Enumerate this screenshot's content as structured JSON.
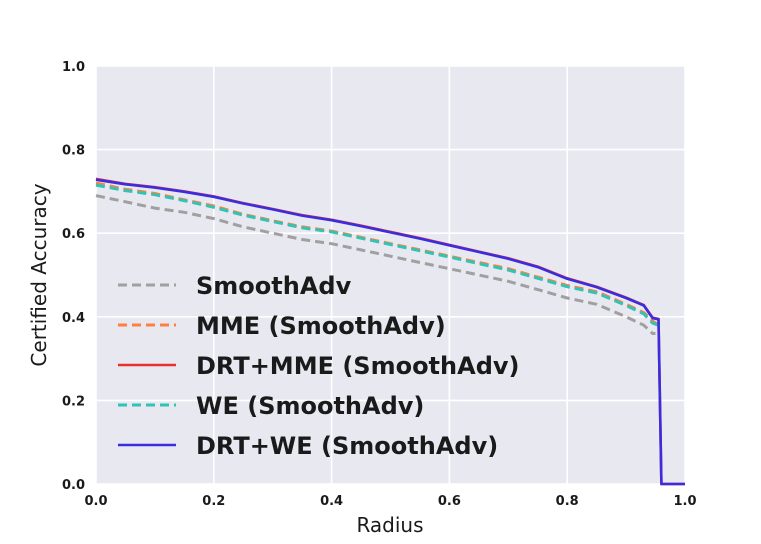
{
  "chart_data": {
    "type": "line",
    "xlabel": "Radius",
    "ylabel": "Certified Accuracy",
    "xlim": [
      0.0,
      1.0
    ],
    "ylim": [
      0.0,
      1.0
    ],
    "xticks": [
      "0.0",
      "0.2",
      "0.4",
      "0.6",
      "0.8",
      "1.0"
    ],
    "yticks": [
      "0.0",
      "0.2",
      "0.4",
      "0.6",
      "0.8",
      "1.0"
    ],
    "grid": true,
    "legend_position": "lower-left",
    "series": [
      {
        "name": "SmoothAdv",
        "color": "#a0a0a0",
        "dash": "dashed",
        "points": [
          [
            0.0,
            0.69
          ],
          [
            0.05,
            0.675
          ],
          [
            0.1,
            0.66
          ],
          [
            0.15,
            0.65
          ],
          [
            0.2,
            0.635
          ],
          [
            0.25,
            0.615
          ],
          [
            0.3,
            0.6
          ],
          [
            0.35,
            0.585
          ],
          [
            0.4,
            0.575
          ],
          [
            0.45,
            0.56
          ],
          [
            0.5,
            0.545
          ],
          [
            0.55,
            0.53
          ],
          [
            0.6,
            0.515
          ],
          [
            0.65,
            0.5
          ],
          [
            0.7,
            0.485
          ],
          [
            0.75,
            0.465
          ],
          [
            0.8,
            0.445
          ],
          [
            0.85,
            0.43
          ],
          [
            0.9,
            0.4
          ],
          [
            0.93,
            0.38
          ],
          [
            0.945,
            0.36
          ],
          [
            0.95,
            0.36
          ]
        ]
      },
      {
        "name": "MME (SmoothAdv)",
        "color": "#ff7f40",
        "dash": "dashed",
        "points": [
          [
            0.0,
            0.72
          ],
          [
            0.05,
            0.705
          ],
          [
            0.1,
            0.695
          ],
          [
            0.15,
            0.68
          ],
          [
            0.2,
            0.665
          ],
          [
            0.25,
            0.645
          ],
          [
            0.3,
            0.63
          ],
          [
            0.35,
            0.615
          ],
          [
            0.4,
            0.605
          ],
          [
            0.45,
            0.59
          ],
          [
            0.5,
            0.575
          ],
          [
            0.55,
            0.56
          ],
          [
            0.6,
            0.545
          ],
          [
            0.65,
            0.53
          ],
          [
            0.7,
            0.515
          ],
          [
            0.75,
            0.495
          ],
          [
            0.8,
            0.475
          ],
          [
            0.85,
            0.46
          ],
          [
            0.9,
            0.43
          ],
          [
            0.93,
            0.41
          ],
          [
            0.945,
            0.39
          ],
          [
            0.955,
            0.38
          ]
        ]
      },
      {
        "name": "DRT+MME (SmoothAdv)",
        "color": "#e8312e",
        "dash": "solid",
        "points": [
          [
            0.0,
            0.73
          ],
          [
            0.05,
            0.718
          ],
          [
            0.1,
            0.71
          ],
          [
            0.15,
            0.7
          ],
          [
            0.2,
            0.688
          ],
          [
            0.25,
            0.672
          ],
          [
            0.3,
            0.658
          ],
          [
            0.35,
            0.643
          ],
          [
            0.4,
            0.632
          ],
          [
            0.45,
            0.618
          ],
          [
            0.5,
            0.603
          ],
          [
            0.55,
            0.588
          ],
          [
            0.6,
            0.572
          ],
          [
            0.65,
            0.556
          ],
          [
            0.7,
            0.54
          ],
          [
            0.75,
            0.52
          ],
          [
            0.8,
            0.492
          ],
          [
            0.85,
            0.472
          ],
          [
            0.9,
            0.446
          ],
          [
            0.93,
            0.428
          ],
          [
            0.945,
            0.398
          ],
          [
            0.955,
            0.395
          ],
          [
            0.96,
            0.0
          ],
          [
            1.0,
            0.0
          ]
        ]
      },
      {
        "name": "WE (SmoothAdv)",
        "color": "#2ec4b6",
        "dash": "dashed",
        "points": [
          [
            0.0,
            0.715
          ],
          [
            0.05,
            0.702
          ],
          [
            0.1,
            0.692
          ],
          [
            0.15,
            0.678
          ],
          [
            0.2,
            0.662
          ],
          [
            0.25,
            0.643
          ],
          [
            0.3,
            0.628
          ],
          [
            0.35,
            0.613
          ],
          [
            0.4,
            0.603
          ],
          [
            0.45,
            0.588
          ],
          [
            0.5,
            0.573
          ],
          [
            0.55,
            0.558
          ],
          [
            0.6,
            0.543
          ],
          [
            0.65,
            0.527
          ],
          [
            0.7,
            0.512
          ],
          [
            0.75,
            0.492
          ],
          [
            0.8,
            0.472
          ],
          [
            0.85,
            0.457
          ],
          [
            0.9,
            0.427
          ],
          [
            0.93,
            0.407
          ],
          [
            0.945,
            0.385
          ],
          [
            0.955,
            0.38
          ]
        ]
      },
      {
        "name": "DRT+WE (SmoothAdv)",
        "color": "#3a2de0",
        "dash": "solid",
        "points": [
          [
            0.0,
            0.728
          ],
          [
            0.05,
            0.717
          ],
          [
            0.1,
            0.709
          ],
          [
            0.15,
            0.699
          ],
          [
            0.2,
            0.687
          ],
          [
            0.25,
            0.671
          ],
          [
            0.3,
            0.657
          ],
          [
            0.35,
            0.642
          ],
          [
            0.4,
            0.631
          ],
          [
            0.45,
            0.617
          ],
          [
            0.5,
            0.602
          ],
          [
            0.55,
            0.587
          ],
          [
            0.6,
            0.571
          ],
          [
            0.65,
            0.555
          ],
          [
            0.7,
            0.539
          ],
          [
            0.75,
            0.519
          ],
          [
            0.8,
            0.491
          ],
          [
            0.85,
            0.471
          ],
          [
            0.9,
            0.445
          ],
          [
            0.93,
            0.427
          ],
          [
            0.945,
            0.397
          ],
          [
            0.955,
            0.394
          ],
          [
            0.96,
            0.0
          ],
          [
            1.0,
            0.0
          ]
        ]
      }
    ]
  }
}
